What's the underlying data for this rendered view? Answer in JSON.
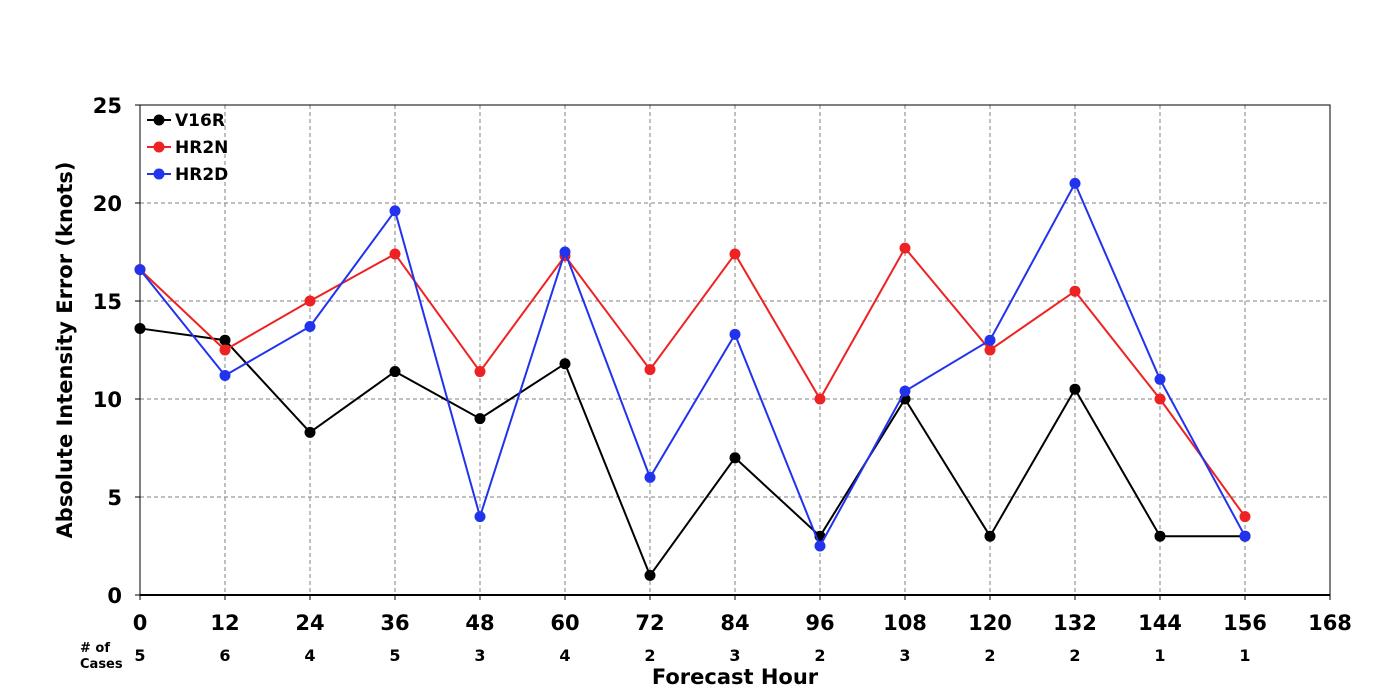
{
  "chart_data": {
    "type": "line",
    "xlabel": "Forecast Hour",
    "ylabel": "Absolute Intensity Error (knots)",
    "xlim": [
      0,
      168
    ],
    "ylim": [
      0,
      25
    ],
    "x_ticks": [
      0,
      12,
      24,
      36,
      48,
      60,
      72,
      84,
      96,
      108,
      120,
      132,
      144,
      156,
      168
    ],
    "y_ticks": [
      0,
      5,
      10,
      15,
      20,
      25
    ],
    "grid": true,
    "legend_position": "top-left",
    "cases_label_line1": "# of",
    "cases_label_line2": "Cases",
    "cases": [
      5,
      6,
      4,
      5,
      3,
      4,
      2,
      3,
      2,
      3,
      2,
      2,
      1,
      1
    ],
    "x": [
      0,
      12,
      24,
      36,
      48,
      60,
      72,
      84,
      96,
      108,
      120,
      132,
      144,
      156
    ],
    "series": [
      {
        "name": "V16R",
        "color": "#000000",
        "values": [
          13.6,
          13.0,
          8.3,
          11.4,
          9.0,
          11.8,
          1.0,
          7.0,
          3.0,
          10.0,
          3.0,
          10.5,
          3.0,
          3.0
        ]
      },
      {
        "name": "HR2N",
        "color": "#ee2222",
        "values": [
          16.6,
          12.5,
          15.0,
          17.4,
          11.4,
          17.3,
          11.5,
          17.4,
          10.0,
          17.7,
          12.5,
          15.5,
          10.0,
          4.0
        ]
      },
      {
        "name": "HR2D",
        "color": "#2233ee",
        "values": [
          16.6,
          11.2,
          13.7,
          19.6,
          4.0,
          17.5,
          6.0,
          13.3,
          2.5,
          10.4,
          13.0,
          21.0,
          11.0,
          3.0
        ]
      }
    ]
  }
}
